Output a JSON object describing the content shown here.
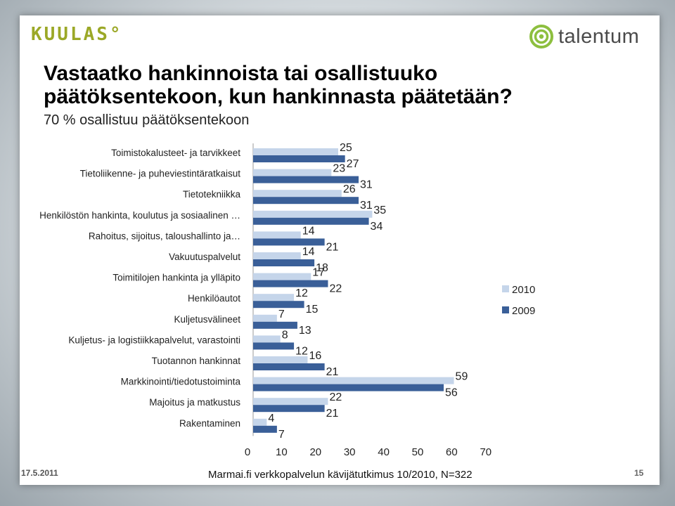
{
  "header": {
    "logo_left": "KUULAS°",
    "logo_right": "talentum",
    "logo_right_icon": "talentum-logo-icon"
  },
  "slide": {
    "title": "Vastaatko hankinnoista tai osallistuuko päätöksentekoon, kun hankinnasta päätetään?",
    "subtitle": "70 % osallistuu päätöksentekoon"
  },
  "colors": {
    "series_2010": "#c5d5ea",
    "series_2009": "#3a5f98"
  },
  "chart_data": {
    "type": "bar",
    "orientation": "horizontal",
    "categories": [
      "Toimistokalusteet- ja tarvikkeet",
      "Tietoliikenne- ja puheviestintäratkaisut",
      "Tietotekniikka",
      "Henkilöstön hankinta, koulutus ja sosiaalinen …",
      "Rahoitus, sijoitus, taloushallinto ja…",
      "Vakuutuspalvelut",
      "Toimitilojen hankinta ja ylläpito",
      "Henkilöautot",
      "Kuljetusvälineet",
      "Kuljetus- ja logistiikkapalvelut, varastointi",
      "Tuotannon hankinnat",
      "Markkinointi/tiedotustoiminta",
      "Majoitus ja matkustus",
      "Rakentaminen"
    ],
    "series": [
      {
        "name": "2010",
        "values": [
          25,
          23,
          26,
          35,
          14,
          14,
          17,
          12,
          7,
          8,
          16,
          59,
          22,
          4
        ]
      },
      {
        "name": "2009",
        "values": [
          27,
          31,
          31,
          34,
          21,
          18,
          22,
          15,
          13,
          12,
          21,
          56,
          21,
          7
        ]
      }
    ],
    "xticks": [
      "0",
      "10",
      "20",
      "30",
      "40",
      "50",
      "60",
      "70"
    ],
    "xlim": [
      0,
      70
    ],
    "grid": false,
    "legend": "right",
    "data_labels": true
  },
  "footer": {
    "date": "17.5.2011",
    "source": "Marmai.fi verkkopalvelun kävijätutkimus 10/2010, N=322",
    "page": "15"
  }
}
